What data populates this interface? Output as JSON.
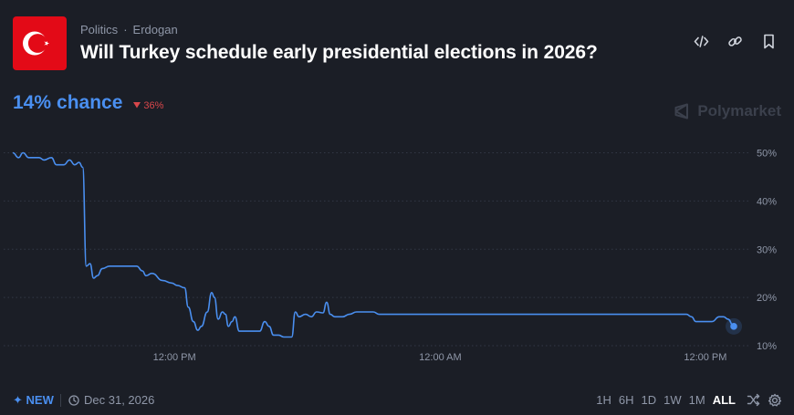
{
  "header": {
    "breadcrumb": [
      "Politics",
      "Erdogan"
    ],
    "breadcrumb_sep": "·",
    "title": "Will Turkey schedule early presidential elections in 2026?",
    "icons": [
      "embed-code-icon",
      "link-icon",
      "bookmark-icon"
    ]
  },
  "market": {
    "chance_value": "14%",
    "chance_word": "chance",
    "change_text": "36%",
    "change_direction": "down",
    "brand": "Polymarket"
  },
  "colors": {
    "accent": "#4a8ff0",
    "negative": "#d8474b",
    "flag_red": "#e30a17",
    "background": "#1b1e26"
  },
  "chart_data": {
    "type": "line",
    "y_axis_position": "right",
    "ylim": [
      10,
      50
    ],
    "y_ticks": [
      50,
      40,
      30,
      20,
      10
    ],
    "y_tick_labels": [
      "50%",
      "40%",
      "30%",
      "20%",
      "10%"
    ],
    "x_tick_labels": [
      "12:00 PM",
      "12:00 AM",
      "12:00 PM"
    ],
    "xlim": [
      0,
      100
    ],
    "x_tick_positions": [
      22.2,
      58.7,
      95.1
    ],
    "grid": "horizontal dotted",
    "series": [
      {
        "color": "#4a8ff0",
        "points": [
          [
            0,
            50
          ],
          [
            0.8,
            49
          ],
          [
            1.4,
            50
          ],
          [
            2.2,
            49
          ],
          [
            3.6,
            49
          ],
          [
            4.3,
            48.5
          ],
          [
            5.3,
            49
          ],
          [
            6,
            47.5
          ],
          [
            7,
            47.5
          ],
          [
            7.8,
            48.5
          ],
          [
            8.5,
            47.5
          ],
          [
            9.1,
            48
          ],
          [
            9.6,
            47
          ],
          [
            10.1,
            26.5
          ],
          [
            10.6,
            27
          ],
          [
            11.1,
            24
          ],
          [
            11.6,
            24.5
          ],
          [
            12.3,
            26
          ],
          [
            13.3,
            26.5
          ],
          [
            15.8,
            26.5
          ],
          [
            17,
            26.5
          ],
          [
            17.8,
            25.5
          ],
          [
            18.3,
            24.5
          ],
          [
            19.1,
            25
          ],
          [
            20.6,
            23.5
          ],
          [
            21.8,
            23
          ],
          [
            22.6,
            22.5
          ],
          [
            23.6,
            22
          ],
          [
            24.1,
            18
          ],
          [
            24.8,
            15
          ],
          [
            25.4,
            13.2
          ],
          [
            25.9,
            14
          ],
          [
            26.7,
            17
          ],
          [
            27.3,
            21
          ],
          [
            27.7,
            20
          ],
          [
            28.2,
            15.5
          ],
          [
            28.8,
            17
          ],
          [
            29.2,
            16.5
          ],
          [
            29.6,
            14
          ],
          [
            30.1,
            15
          ],
          [
            30.5,
            16
          ],
          [
            31.1,
            13
          ],
          [
            33.2,
            13
          ],
          [
            33.9,
            13
          ],
          [
            34.6,
            15
          ],
          [
            35.2,
            14
          ],
          [
            35.8,
            12.2
          ],
          [
            36.5,
            12.2
          ],
          [
            37.2,
            11.8
          ],
          [
            38.3,
            11.8
          ],
          [
            38.8,
            17
          ],
          [
            39.3,
            16
          ],
          [
            40.2,
            16.5
          ],
          [
            41,
            16
          ],
          [
            41.7,
            17
          ],
          [
            42.6,
            16.8
          ],
          [
            43.1,
            19
          ],
          [
            43.6,
            16.5
          ],
          [
            44.2,
            16
          ],
          [
            45.3,
            16
          ],
          [
            46.2,
            16.5
          ],
          [
            47.2,
            17
          ],
          [
            49.5,
            17
          ],
          [
            50.3,
            16.5
          ],
          [
            60,
            16.5
          ],
          [
            80,
            16.5
          ],
          [
            92.5,
            16.5
          ],
          [
            93.2,
            16
          ],
          [
            93.8,
            15
          ],
          [
            96,
            15
          ],
          [
            97,
            16
          ],
          [
            97.6,
            16
          ],
          [
            98.2,
            15.5
          ],
          [
            99,
            14
          ]
        ]
      }
    ]
  },
  "footer": {
    "new_label": "NEW",
    "date": "Dec 31, 2026",
    "ranges": [
      "1H",
      "6H",
      "1D",
      "1W",
      "1M",
      "ALL"
    ],
    "active_range": "ALL"
  }
}
